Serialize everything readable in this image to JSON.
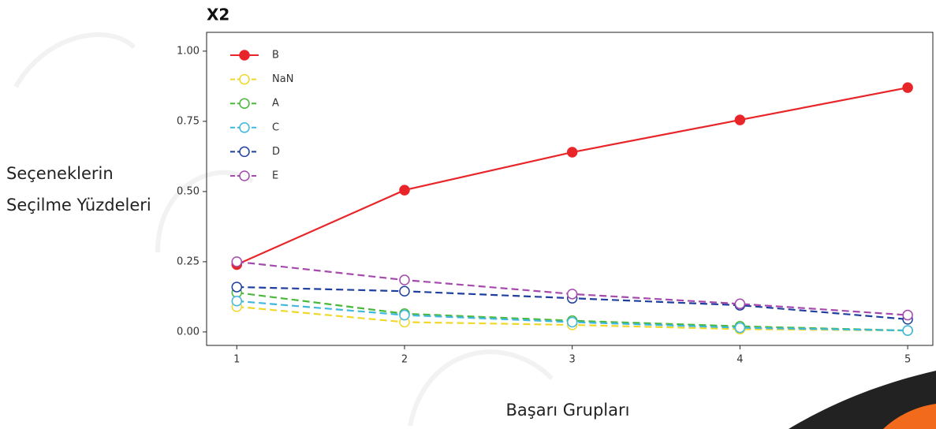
{
  "chart_data": {
    "type": "line",
    "title": "X2",
    "y_label": "Seçeneklerin Seçilme Yüzdeleri",
    "x_label": "Başarı Grupları",
    "x": [
      1,
      2,
      3,
      4,
      5
    ],
    "series": [
      {
        "name": "B",
        "color": "#e8262a",
        "linestyle": "solid",
        "filled": true,
        "values": [
          0.24,
          0.505,
          0.64,
          0.755,
          0.87
        ]
      },
      {
        "name": "NaN",
        "color": "#f0d82a",
        "linestyle": "dashed",
        "filled": false,
        "values": [
          0.09,
          0.035,
          0.025,
          0.01,
          0.005
        ]
      },
      {
        "name": "A",
        "color": "#4ab83a",
        "linestyle": "dashed",
        "filled": false,
        "values": [
          0.14,
          0.065,
          0.04,
          0.02,
          0.005
        ]
      },
      {
        "name": "C",
        "color": "#3fb8e0",
        "linestyle": "dashed",
        "filled": false,
        "values": [
          0.11,
          0.06,
          0.035,
          0.015,
          0.005
        ]
      },
      {
        "name": "D",
        "color": "#1f3f9e",
        "linestyle": "dashed",
        "filled": false,
        "values": [
          0.16,
          0.145,
          0.12,
          0.095,
          0.045
        ]
      },
      {
        "name": "E",
        "color": "#a54aad",
        "linestyle": "dashed",
        "filled": false,
        "values": [
          0.25,
          0.185,
          0.135,
          0.1,
          0.06
        ]
      }
    ],
    "xlim": [
      0.82,
      5.15
    ],
    "ylim": [
      -0.048,
      1.067
    ],
    "xticks": [
      1,
      2,
      3,
      4,
      5
    ],
    "yticks": [
      {
        "value": 0,
        "label": "0.00"
      },
      {
        "value": 0.25,
        "label": "0.25"
      },
      {
        "value": 0.5,
        "label": "0.50"
      },
      {
        "value": 0.75,
        "label": "0.75"
      },
      {
        "value": 1,
        "label": "1.00"
      }
    ],
    "legend": "upper left",
    "grid": false
  }
}
